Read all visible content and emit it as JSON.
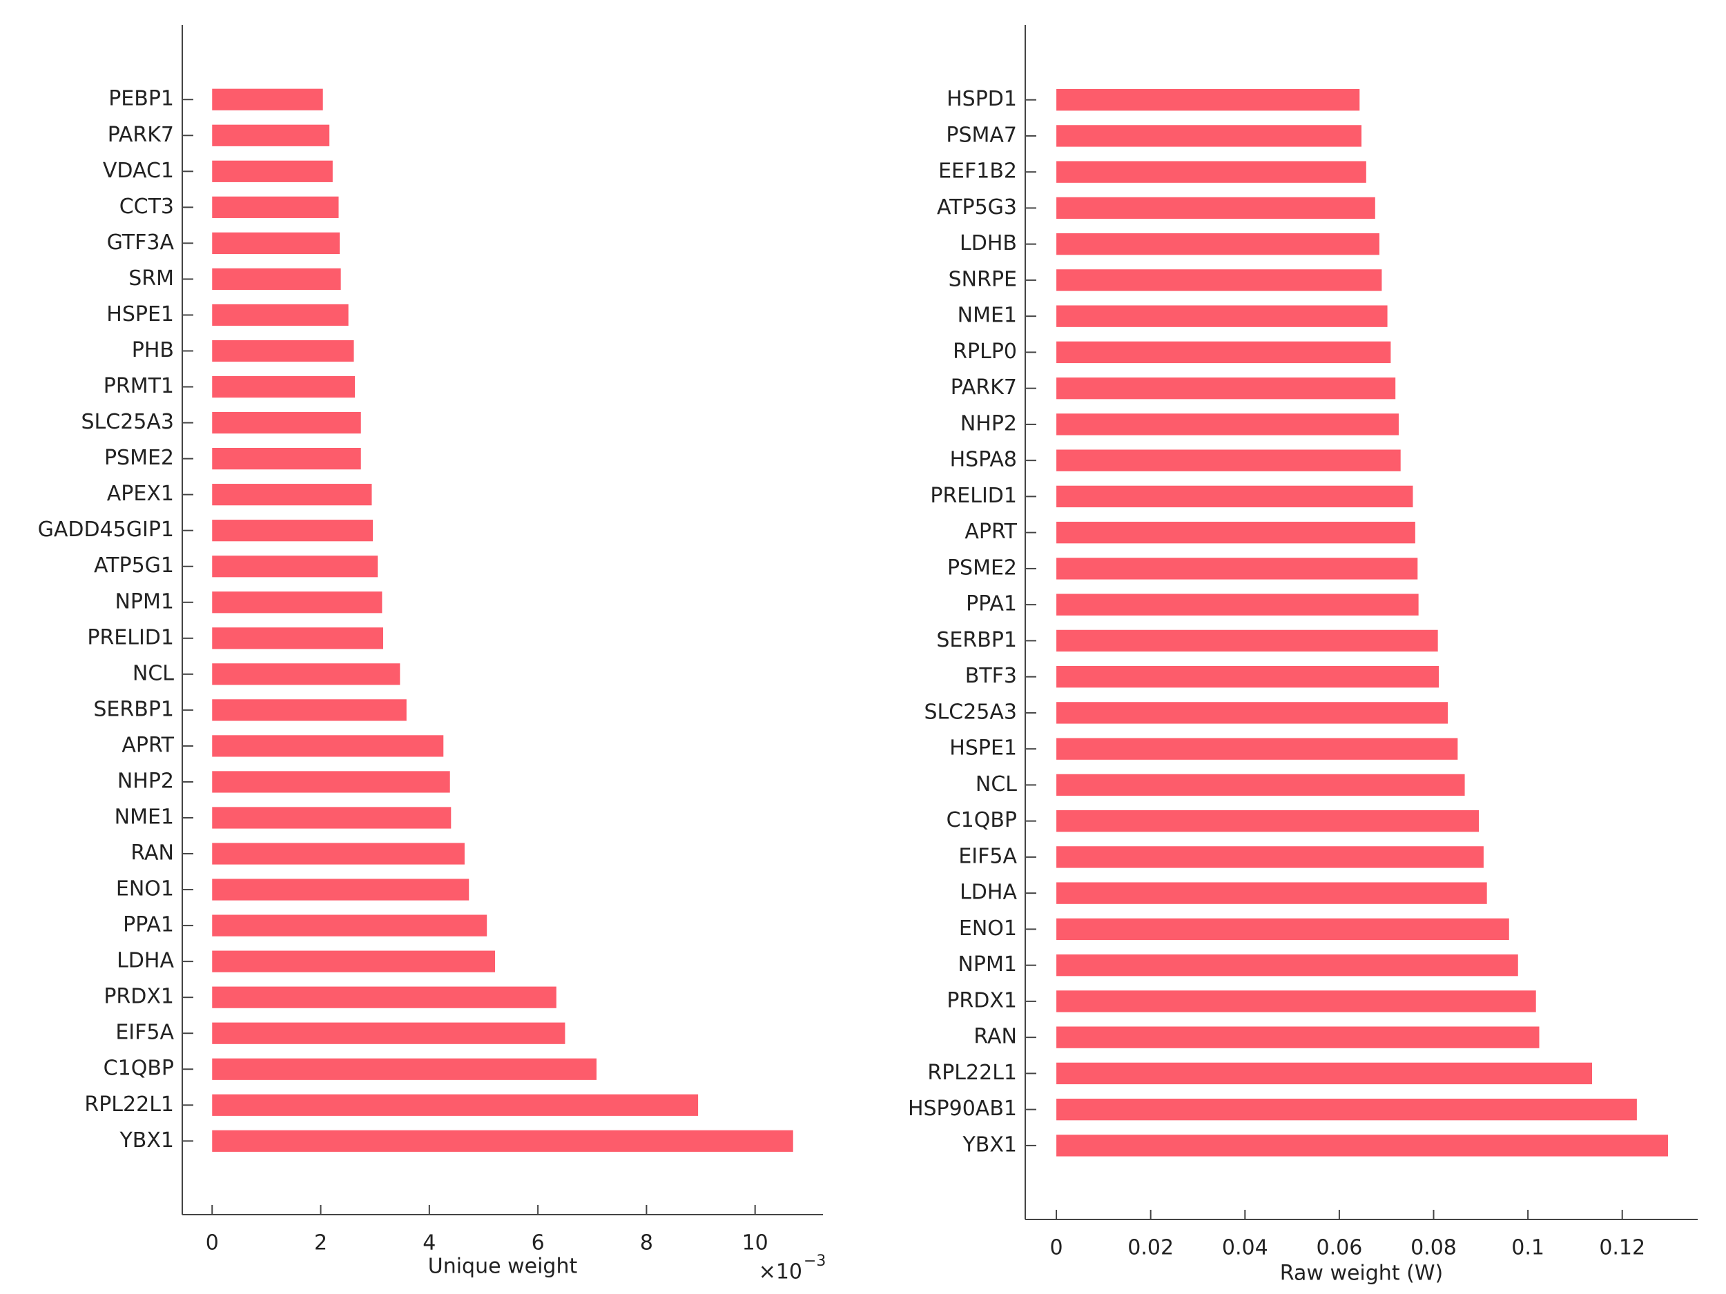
{
  "chart_data": [
    {
      "type": "bar",
      "orientation": "horizontal",
      "color": "#fd5c6b",
      "categories": [
        "PEBP1",
        "PARK7",
        "VDAC1",
        "CCT3",
        "GTF3A",
        "SRM",
        "HSPE1",
        "PHB",
        "PRMT1",
        "SLC25A3",
        "PSME2",
        "APEX1",
        "GADD45GIP1",
        "ATP5G1",
        "NPM1",
        "PRELID1",
        "NCL",
        "SERBP1",
        "APRT",
        "NHP2",
        "NME1",
        "RAN",
        "ENO1",
        "PPA1",
        "LDHA",
        "PRDX1",
        "EIF5A",
        "C1QBP",
        "RPL22L1",
        "YBX1"
      ],
      "values": [
        2.04,
        2.16,
        2.22,
        2.33,
        2.35,
        2.37,
        2.51,
        2.61,
        2.63,
        2.74,
        2.74,
        2.94,
        2.96,
        3.05,
        3.13,
        3.15,
        3.46,
        3.58,
        4.26,
        4.38,
        4.4,
        4.65,
        4.73,
        5.06,
        5.21,
        6.34,
        6.5,
        7.08,
        8.95,
        10.7
      ],
      "xlim": [
        -0.55,
        11.25
      ],
      "xticks": [
        0,
        2,
        4,
        6,
        8,
        10
      ],
      "xlabel": "Unique weight",
      "x_multiplier": {
        "base": "×10",
        "exponent": "−3"
      }
    },
    {
      "type": "bar",
      "orientation": "horizontal",
      "color": "#fd5c6b",
      "categories": [
        "HSPD1",
        "PSMA7",
        "EEF1B2",
        "ATP5G3",
        "LDHB",
        "SNRPE",
        "NME1",
        "RPLP0",
        "PARK7",
        "NHP2",
        "HSPA8",
        "PRELID1",
        "APRT",
        "PSME2",
        "PPA1",
        "SERBP1",
        "BTF3",
        "SLC25A3",
        "HSPE1",
        "NCL",
        "C1QBP",
        "EIF5A",
        "LDHA",
        "ENO1",
        "NPM1",
        "PRDX1",
        "RAN",
        "RPL22L1",
        "HSP90AB1",
        "YBX1"
      ],
      "values": [
        0.0643,
        0.0647,
        0.0657,
        0.0676,
        0.0685,
        0.069,
        0.0702,
        0.0709,
        0.0719,
        0.0726,
        0.073,
        0.0756,
        0.0761,
        0.0766,
        0.0768,
        0.0809,
        0.0811,
        0.083,
        0.0851,
        0.0866,
        0.0896,
        0.0906,
        0.0913,
        0.096,
        0.0979,
        0.1017,
        0.1024,
        0.1136,
        0.1231,
        0.1297
      ],
      "xlim": [
        -0.0066,
        0.136
      ],
      "xticks": [
        0,
        0.02,
        0.04,
        0.06,
        0.08,
        0.1,
        0.12
      ],
      "xlabel": "Raw weight (W)"
    }
  ]
}
